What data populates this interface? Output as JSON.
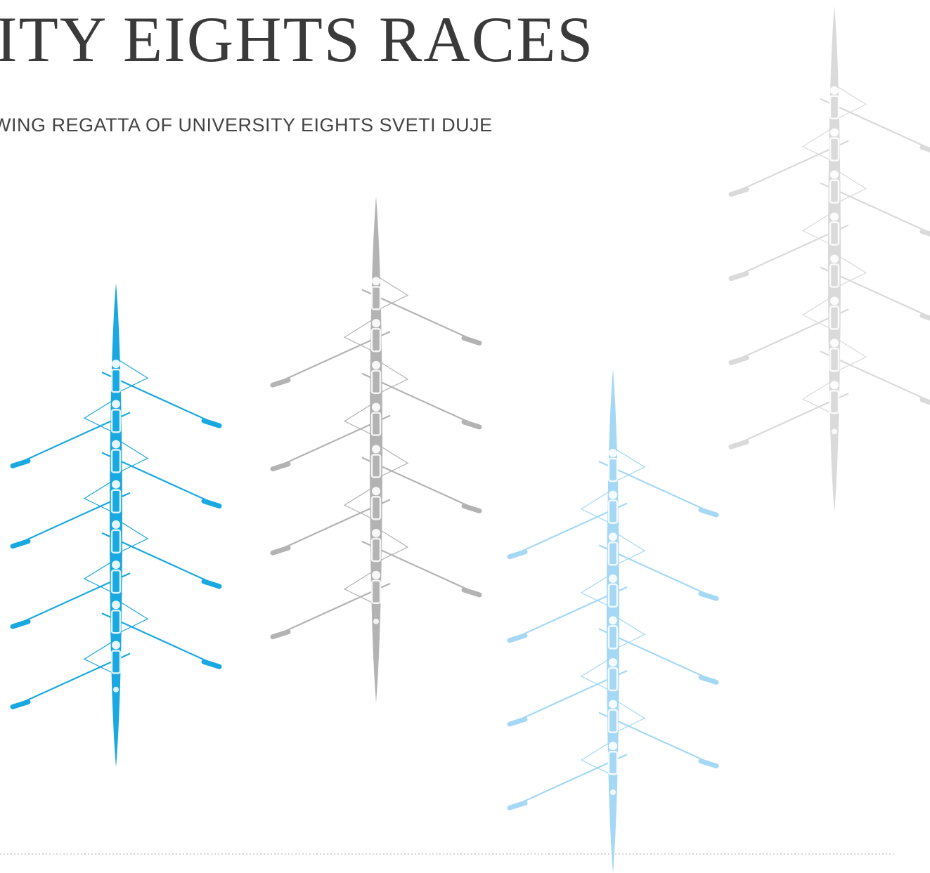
{
  "header": {
    "title": "ITY EIGHTS RACES",
    "subtitle": "WING REGATTA OF UNIVERSITY EIGHTS SVETI DUJE"
  }
}
